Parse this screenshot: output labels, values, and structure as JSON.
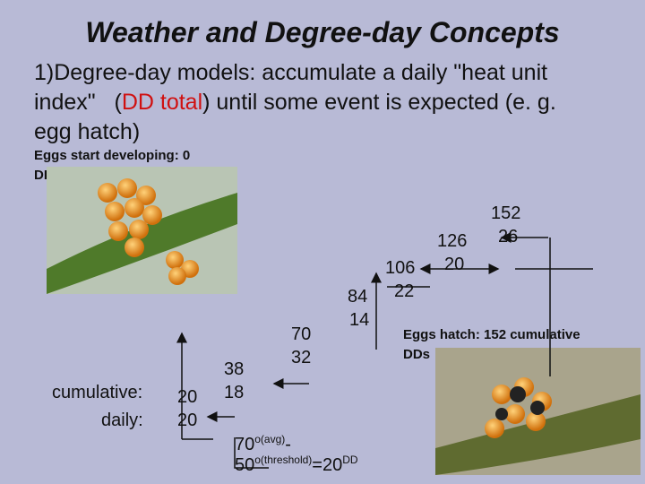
{
  "title": "Weather and Degree-day Concepts",
  "point": {
    "part1": "1)Degree-day models: accumulate a daily \"heat unit",
    "part2": "index\"   (",
    "highlight": "DD total",
    "part3": ") until some event is expected (e. g.",
    "part4": "egg hatch)"
  },
  "start_caption": {
    "line1": "Eggs start developing: 0",
    "line2": "DDs"
  },
  "row_labels": {
    "cumulative": "cumulative:",
    "daily": "daily:"
  },
  "days": [
    {
      "cumulative": 20,
      "daily": 20
    },
    {
      "cumulative": 38,
      "daily": 18
    },
    {
      "cumulative": 70,
      "daily": 32
    },
    {
      "cumulative": 84,
      "daily": 14
    },
    {
      "cumulative": 106,
      "daily": 22
    },
    {
      "cumulative": 126,
      "daily": 20
    },
    {
      "cumulative": 152,
      "daily": 26
    }
  ],
  "formula": {
    "avg": "70",
    "avg_sup": "o(avg)",
    "minus": "-",
    "threshold": "50",
    "threshold_sup": "o(threshold)",
    "result": "=20",
    "unit_sup": "DD"
  },
  "hatch_caption": {
    "line1": "Eggs hatch: 152 cumulative",
    "line2": "DDs"
  }
}
